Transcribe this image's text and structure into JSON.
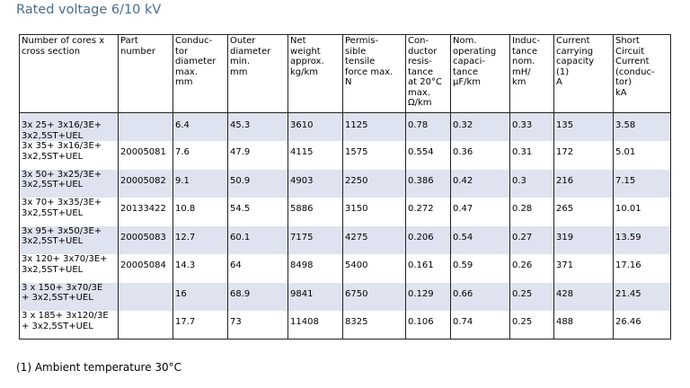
{
  "title": "Rated voltage 6/10 kV",
  "table": {
    "headers": [
      "Number of cores x\ncross section",
      "Part\nnumber",
      "Conduc-\ntor\ndiameter\nmax.\nmm",
      "Outer\ndiameter\nmin.\nmm",
      "Net\nweight\napprox.\nkg/km",
      "Permis-\nsible\ntensile\nforce max.\nN",
      "Con-\nductor\nresis-\ntance\nat 20°C\nmax.\nΩ/km",
      "Nom.\noperating\ncapaci-\ntance\nµF/km",
      "Induc-\ntance\nnom.\nmH/\nkm",
      "Current\ncarrying\ncapacity\n(1)\nA",
      "Short\nCircuit\nCurrent\n(conduc-\ntor)\nkA"
    ],
    "rows": [
      [
        "3x 25+ 3x16/3E+\n3x2,5ST+UEL",
        "",
        "6.4",
        "45.3",
        "3610",
        "1125",
        "0.78",
        "0.32",
        "0.33",
        "135",
        "3.58"
      ],
      [
        "3x 35+ 3x16/3E+\n3x2,5ST+UEL",
        "20005081",
        "7.6",
        "47.9",
        "4115",
        "1575",
        "0.554",
        "0.36",
        "0.31",
        "172",
        "5.01"
      ],
      [
        "3x 50+ 3x25/3E+\n3x2,5ST+UEL",
        "20005082",
        "9.1",
        "50.9",
        "4903",
        "2250",
        "0.386",
        "0.42",
        "0.3",
        "216",
        "7.15"
      ],
      [
        "3x 70+ 3x35/3E+\n3x2,5ST+UEL",
        "20133422",
        "10.8",
        "54.5",
        "5886",
        "3150",
        "0.272",
        "0.47",
        "0.28",
        "265",
        "10.01"
      ],
      [
        "3x 95+ 3x50/3E+\n3x2,5ST+UEL",
        "20005083",
        "12.7",
        "60.1",
        "7175",
        "4275",
        "0.206",
        "0.54",
        "0.27",
        "319",
        "13.59"
      ],
      [
        "3x 120+ 3x70/3E+\n3x2,5ST+UEL",
        "20005084",
        "14.3",
        "64",
        "8498",
        "5400",
        "0.161",
        "0.59",
        "0.26",
        "371",
        "17.16"
      ],
      [
        "3 x 150+ 3x70/3E\n+ 3x2,5ST+UEL",
        "",
        "16",
        "68.9",
        "9841",
        "6750",
        "0.129",
        "0.66",
        "0.25",
        "428",
        "21.45"
      ],
      [
        "3 x 185+ 3x120/3E\n+ 3x2,5ST+UEL",
        "",
        "17.7",
        "73",
        "11408",
        "8325",
        "0.106",
        "0.74",
        "0.25",
        "488",
        "26.46"
      ]
    ]
  },
  "footnote": "(1) Ambient temperature 30°C"
}
